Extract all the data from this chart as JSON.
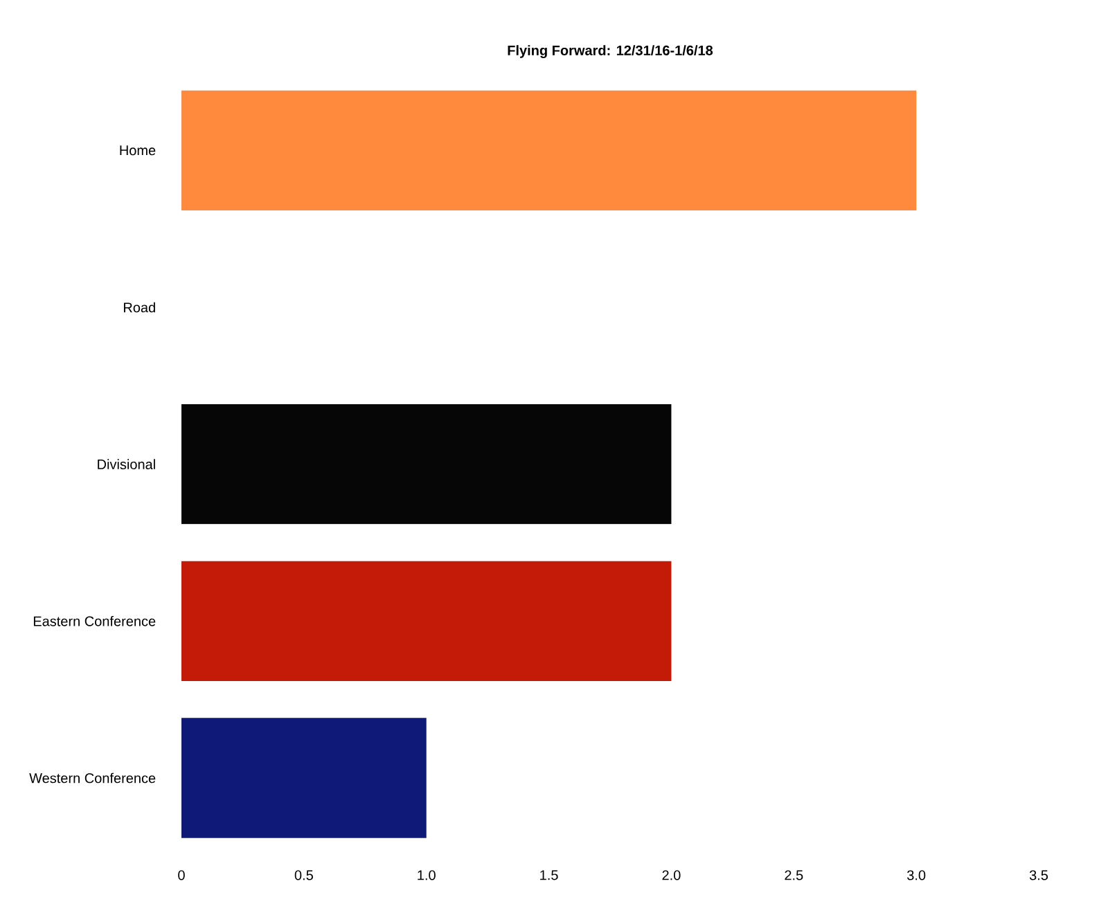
{
  "chart_data": {
    "type": "bar",
    "orientation": "horizontal",
    "title": "Flying Forward: 12/31/16-1/6/18",
    "categories": [
      "Home",
      "Road",
      "Divisional",
      "Eastern Conference",
      "Western Conference"
    ],
    "values": [
      3.0,
      0,
      2.0,
      2.0,
      1.0
    ],
    "colors": [
      "#ff8a3d",
      "#ff8a3d",
      "#060606",
      "#c41a08",
      "#0f1a78"
    ],
    "xlim": [
      0,
      3.5
    ],
    "xticks": [
      0,
      0.5,
      {
        "value": 1,
        "label": "1.0"
      },
      1.5,
      {
        "value": 2,
        "label": "2.0"
      },
      2.5,
      {
        "value": 3,
        "label": "3.0"
      },
      3.5
    ],
    "grid": false
  }
}
